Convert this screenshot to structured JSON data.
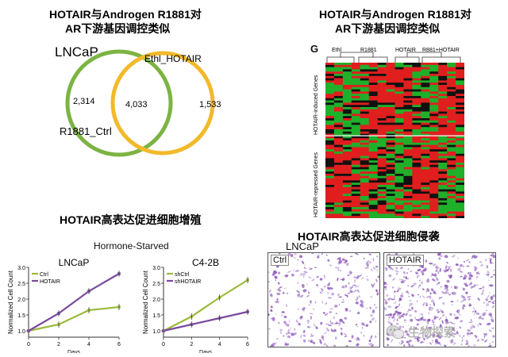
{
  "headings": {
    "venn_line1": "HOTAIR与Androgen R1881对",
    "venn_line2": "AR下游基因调控类似",
    "heatmap_line1": "HOTAIR与Androgen R1881对",
    "heatmap_line2": "AR下游基因调控类似",
    "growth": "HOTAIR高表达促进细胞增殖",
    "invasion": "HOTAIR高表达促进细胞侵袭"
  },
  "venn": {
    "cell_line": "LNCaP",
    "left_label": "R1881_Ctrl",
    "right_label": "Ethl_HOTAIR",
    "left_only": "2,314",
    "overlap": "4,033",
    "right_only": "1,533",
    "left_color": "#7cb342",
    "right_color": "#f2b92a"
  },
  "heatmap": {
    "panel_letter": "G",
    "groups": [
      "Ethl",
      "R1881",
      "HOTAIR",
      "R881+HOTAIR"
    ],
    "row_group_top": "HOTAIR-induced Genes",
    "row_group_bottom": "HOTAIR-repressed Genes",
    "colors": {
      "up": "#e01e1e",
      "down": "#1fb02a",
      "mid": "#111111"
    }
  },
  "growth_panel": {
    "condition": "Hormone-Starved",
    "charts": [
      {
        "title": "LNCaP",
        "ylabel": "Normalized Cell Count",
        "xlabel": "Days",
        "x_ticks": [
          "0",
          "2",
          "4",
          "6"
        ],
        "y_ticks": [
          "1.0",
          "1.5",
          "2.0",
          "2.5",
          "3.0"
        ]
      },
      {
        "title": "C4-2B",
        "ylabel": "Normalized Cell Count",
        "xlabel": "Days",
        "x_ticks": [
          "0",
          "2",
          "4",
          "6"
        ],
        "y_ticks": [
          "1.0",
          "1.5",
          "2.0",
          "2.5",
          "3.0"
        ]
      }
    ]
  },
  "chart_data": [
    {
      "type": "line",
      "title": "LNCaP",
      "xlabel": "Days",
      "ylabel": "Normalized Cell Count",
      "x": [
        0,
        2,
        4,
        6
      ],
      "ylim": [
        0.8,
        3.0
      ],
      "series": [
        {
          "name": "Ctrl",
          "color": "#9bbb3b",
          "values": [
            1.0,
            1.2,
            1.65,
            1.75
          ]
        },
        {
          "name": "HOTAIR",
          "color": "#7a4a9e",
          "values": [
            1.0,
            1.55,
            2.25,
            2.8
          ]
        }
      ]
    },
    {
      "type": "line",
      "title": "C4-2B",
      "xlabel": "Days",
      "ylabel": "Normalized Cell Count",
      "x": [
        0,
        2,
        4,
        6
      ],
      "ylim": [
        0.8,
        3.0
      ],
      "series": [
        {
          "name": "shCtrl",
          "color": "#9bbb3b",
          "values": [
            1.0,
            1.45,
            2.05,
            2.6
          ]
        },
        {
          "name": "shHOTAIR",
          "color": "#7a4a9e",
          "values": [
            1.0,
            1.2,
            1.4,
            1.6
          ]
        }
      ]
    }
  ],
  "invasion_panel": {
    "cell_line": "LNCaP",
    "images": [
      {
        "label": "Ctrl",
        "density": 0.35
      },
      {
        "label": "HOTAIR",
        "density": 0.55
      }
    ],
    "stain_color": "#8a55b8"
  },
  "watermark": "生物探索"
}
